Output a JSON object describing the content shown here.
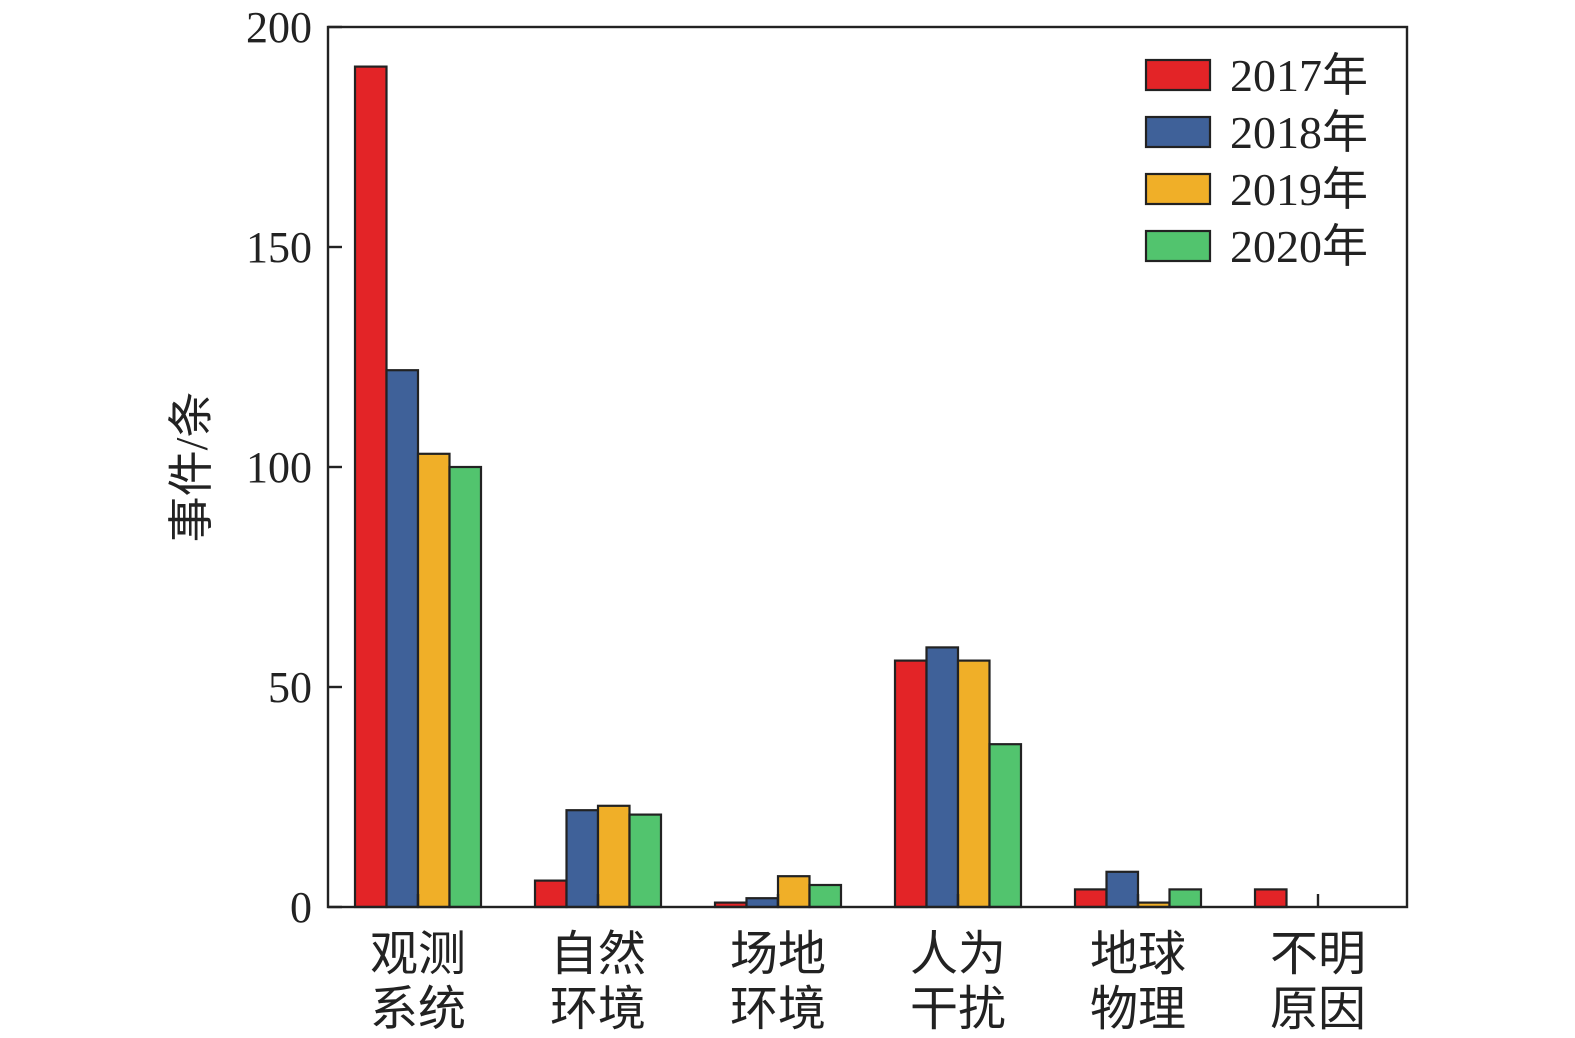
{
  "chart_data": {
    "type": "bar",
    "ylabel": "事件/条",
    "ylim": [
      0,
      200
    ],
    "yticks": [
      0,
      50,
      100,
      150,
      200
    ],
    "categories": [
      [
        "观测",
        "系统"
      ],
      [
        "自然",
        "环境"
      ],
      [
        "场地",
        "环境"
      ],
      [
        "人为",
        "干扰"
      ],
      [
        "地球",
        "物理"
      ],
      [
        "不明",
        "原因"
      ]
    ],
    "series": [
      {
        "name": "2017年",
        "color": "#e32427",
        "values": [
          191,
          6,
          1,
          56,
          4,
          4
        ]
      },
      {
        "name": "2018年",
        "color": "#3f6199",
        "values": [
          122,
          22,
          2,
          59,
          8,
          0
        ]
      },
      {
        "name": "2019年",
        "color": "#f0af28",
        "values": [
          103,
          23,
          7,
          56,
          1,
          0
        ]
      },
      {
        "name": "2020年",
        "color": "#52c46e",
        "values": [
          100,
          21,
          5,
          37,
          4,
          0
        ]
      }
    ],
    "legend_position": "top-right",
    "grid": false
  }
}
